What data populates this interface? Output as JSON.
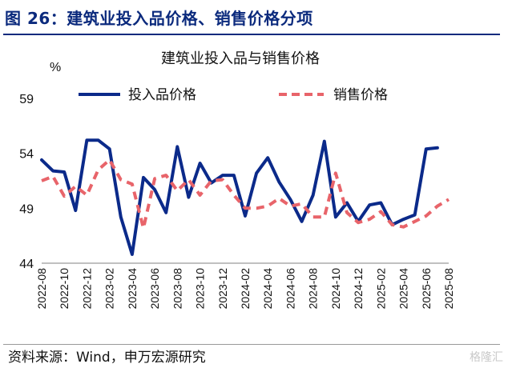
{
  "header": {
    "figure_title": "图 26：建筑业投入品价格、销售价格分项",
    "source": "资料来源：Wind，申万宏源研究",
    "watermark": "格隆汇"
  },
  "chart_data": {
    "type": "line",
    "title": "建筑业投入品与销售价格",
    "ylabel": "%",
    "xlabel": "",
    "ylim": [
      44,
      59
    ],
    "yticks": [
      44,
      49,
      54,
      59
    ],
    "x": [
      "2022-08",
      "2022-09",
      "2022-10",
      "2022-11",
      "2022-12",
      "2023-01",
      "2023-02",
      "2023-03",
      "2023-04",
      "2023-05",
      "2023-06",
      "2023-07",
      "2023-08",
      "2023-09",
      "2023-10",
      "2023-11",
      "2023-12",
      "2024-01",
      "2024-02",
      "2024-03",
      "2024-04",
      "2024-05",
      "2024-06",
      "2024-07",
      "2024-08",
      "2024-09",
      "2024-10",
      "2024-11",
      "2024-12",
      "2025-01",
      "2025-02",
      "2025-03",
      "2025-04",
      "2025-05",
      "2025-06",
      "2025-07",
      "2025-08"
    ],
    "xtick_labels": [
      "2022-08",
      "2022-10",
      "2022-12",
      "2023-02",
      "2023-04",
      "2023-06",
      "2023-08",
      "2023-10",
      "2023-12",
      "2024-02",
      "2024-04",
      "2024-06",
      "2024-08",
      "2024-10",
      "2024-12",
      "2025-02",
      "2025-04",
      "2025-06",
      "2025-08"
    ],
    "series": [
      {
        "name": "投入品价格",
        "color": "#0b2a8a",
        "style": "solid",
        "values": [
          53.4,
          52.4,
          52.3,
          48.8,
          55.2,
          55.2,
          54.4,
          48.2,
          44.8,
          51.8,
          50.7,
          48.6,
          54.6,
          50.0,
          53.1,
          51.3,
          52.0,
          52.0,
          48.3,
          52.2,
          53.6,
          51.4,
          49.8,
          47.8,
          50.2,
          55.1,
          48.2,
          49.5,
          47.8,
          49.3,
          49.5,
          47.5,
          48.0,
          48.4,
          54.4,
          54.5,
          null
        ]
      },
      {
        "name": "销售价格",
        "color": "#e8646a",
        "style": "dashed",
        "values": [
          51.5,
          51.9,
          50.1,
          51.0,
          50.2,
          52.5,
          53.4,
          51.6,
          51.2,
          47.2,
          51.7,
          52.0,
          50.6,
          51.6,
          50.2,
          51.5,
          51.6,
          50.2,
          49.0,
          49.0,
          49.2,
          49.9,
          49.2,
          49.4,
          48.2,
          48.2,
          52.2,
          48.6,
          47.7,
          48.0,
          48.7,
          47.5,
          47.3,
          47.8,
          48.3,
          49.2,
          49.8
        ]
      }
    ]
  }
}
